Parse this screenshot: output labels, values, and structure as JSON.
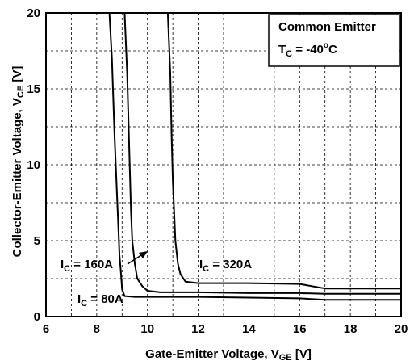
{
  "chart_data": {
    "type": "line",
    "xlabel": {
      "main": "Gate-Emitter Voltage, V",
      "sub": "GE",
      "unit": " [V]"
    },
    "ylabel": {
      "main": "Collector-Emitter Voltage, V",
      "sub": "CE",
      "unit": " [V]"
    },
    "xlim": [
      6,
      20
    ],
    "ylim": [
      0,
      20
    ],
    "x_ticks": [
      "6",
      "8",
      "10",
      "12",
      "14",
      "16",
      "18",
      "20"
    ],
    "y_ticks": [
      "0",
      "5",
      "10",
      "15",
      "20"
    ],
    "grid": true,
    "legend_box": {
      "line1": "Common Emitter",
      "line2_main": "T",
      "line2_sub": "C",
      "line2_value": " = -40",
      "line2_sup": "o",
      "line2_unit": "C"
    },
    "series": [
      {
        "label_main": "I",
        "label_sub": "C",
        "label_value": " = 80A",
        "x": [
          8.5,
          8.6,
          8.7,
          8.8,
          8.85,
          8.9,
          8.95,
          9.0,
          9.1,
          9.5,
          10,
          12,
          14,
          16,
          17,
          20
        ],
        "y": [
          20,
          17,
          12,
          8,
          6,
          4,
          3,
          1.8,
          1.35,
          1.3,
          1.3,
          1.3,
          1.25,
          1.2,
          1.1,
          1.1
        ]
      },
      {
        "label_main": "I",
        "label_sub": "C",
        "label_value": " = 160A",
        "x": [
          9.1,
          9.2,
          9.3,
          9.35,
          9.4,
          9.5,
          9.6,
          9.8,
          10.0,
          10.5,
          12,
          14,
          16,
          17,
          20
        ],
        "y": [
          20,
          16,
          10,
          7,
          5,
          3.5,
          2.5,
          2.0,
          1.7,
          1.6,
          1.6,
          1.55,
          1.55,
          1.5,
          1.5
        ]
      },
      {
        "label_main": "I",
        "label_sub": "C",
        "label_value": " = 320A",
        "x": [
          10.8,
          10.9,
          10.95,
          11.0,
          11.05,
          11.1,
          11.2,
          11.3,
          11.5,
          12,
          14,
          16,
          17,
          20
        ],
        "y": [
          20,
          16,
          12,
          9,
          7,
          5,
          3.5,
          2.8,
          2.3,
          2.2,
          2.2,
          2.15,
          1.85,
          1.85
        ]
      }
    ]
  },
  "colors": {
    "line": "#000000",
    "grid": "#000000",
    "background": "#ffffff"
  }
}
